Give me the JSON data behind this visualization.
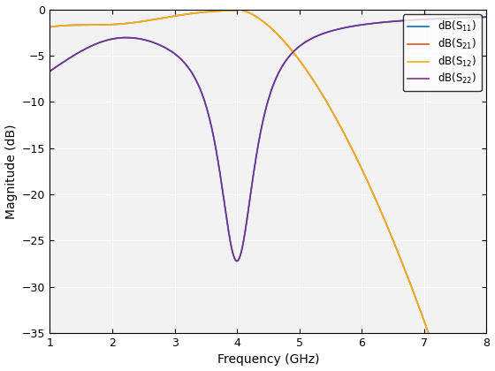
{
  "title": "",
  "xlabel": "Frequency (GHz)",
  "ylabel": "Magnitude (dB)",
  "xlim": [
    1,
    8
  ],
  "ylim": [
    -35,
    0
  ],
  "yticks": [
    0,
    -5,
    -10,
    -15,
    -20,
    -25,
    -30,
    -35
  ],
  "xticks": [
    1,
    2,
    3,
    4,
    5,
    6,
    7,
    8
  ],
  "legend_labels": [
    "dB(S$_{11}$)",
    "dB(S$_{21}$)",
    "dB(S$_{12}$)",
    "dB(S$_{22}$)"
  ],
  "colors_s11": "#0072BD",
  "colors_s21": "#D95319",
  "colors_s12": "#EDB120",
  "colors_s22": "#7E2F8E",
  "linewidth": 1.2,
  "figsize": [
    5.6,
    4.2
  ],
  "dpi": 100,
  "facecolor": "#F2F2F2",
  "grid_color": "white"
}
